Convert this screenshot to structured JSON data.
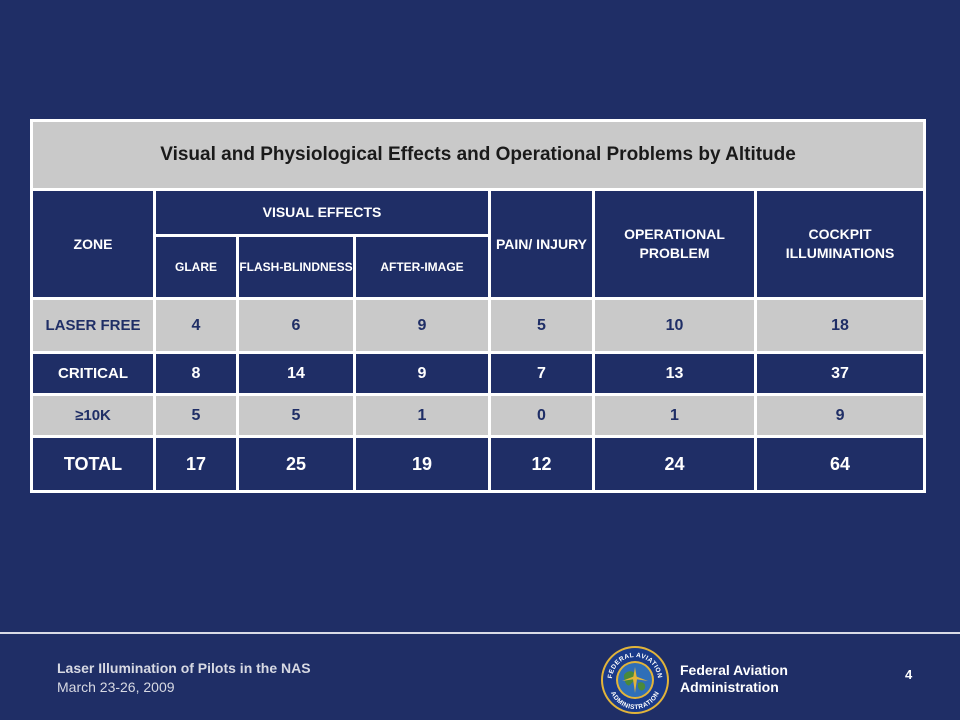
{
  "table": {
    "title": "Visual and Physiological Effects and Operational Problems by Altitude",
    "headers": {
      "zone": "ZONE",
      "visual_effects": "VISUAL EFFECTS",
      "glare": "GLARE",
      "flash_blindness": "FLASH-BLINDNESS",
      "after_image": "AFTER-IMAGE",
      "pain_injury": "PAIN/ INJURY",
      "operational_problem": "OPERATIONAL PROBLEM",
      "cockpit_illuminations": "COCKPIT ILLUMINATIONS"
    },
    "rows": [
      {
        "zone": "LASER FREE",
        "values": [
          "4",
          "6",
          "9",
          "5",
          "10",
          "18"
        ]
      },
      {
        "zone": "CRITICAL",
        "values": [
          "8",
          "14",
          "9",
          "7",
          "13",
          "37"
        ]
      },
      {
        "zone": "≥10K",
        "values": [
          "5",
          "5",
          "1",
          "0",
          "1",
          "9"
        ]
      },
      {
        "zone": "TOTAL",
        "values": [
          "17",
          "25",
          "19",
          "12",
          "24",
          "64"
        ]
      }
    ]
  },
  "footer": {
    "presentation_title": "Laser Illumination of Pilots in the NAS",
    "date": "March 23-26, 2009",
    "agency_line1": "Federal Aviation",
    "agency_line2": "Administration",
    "page_number": "4"
  },
  "seal": {
    "text_top": "FEDERAL AVIATION",
    "text_bottom": "ADMINISTRATION",
    "colors": {
      "ring": "#1a3a8a",
      "gold": "#e2b43a",
      "globe": "#2f6fb8",
      "land": "#4a8a3a"
    }
  }
}
